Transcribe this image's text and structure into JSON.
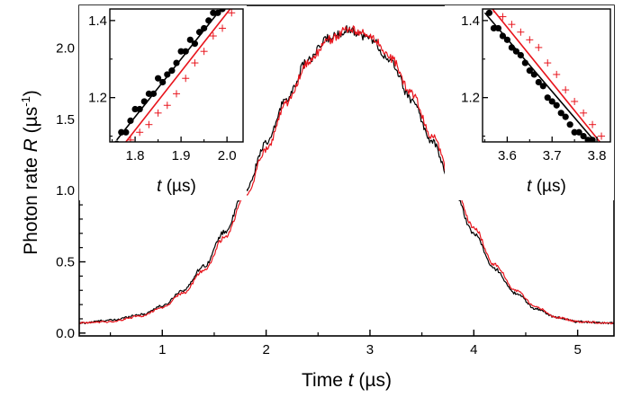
{
  "chart_data": [
    {
      "type": "line",
      "role": "main",
      "xlabel_prefix": "Time ",
      "xlabel_var": "t",
      "xlabel_unit": " (µs)",
      "ylabel_prefix": "Photon rate ",
      "ylabel_var": "R",
      "ylabel_unit": " (µs",
      "ylabel_unit_sup": "-1",
      "ylabel_close": ")",
      "xlim": [
        0.2,
        5.35
      ],
      "ylim": [
        -0.02,
        2.3
      ],
      "x_ticks": [
        1,
        2,
        3,
        4,
        5
      ],
      "x_tick_labels": [
        "1",
        "2",
        "3",
        "4",
        "5"
      ],
      "y_ticks": [
        0.0,
        0.5,
        1.0,
        1.5,
        2.0
      ],
      "y_tick_labels": [
        "0.0",
        "0.5",
        "1.0",
        "1.5",
        "2.0"
      ],
      "series": [
        {
          "name": "black trace",
          "color": "#000000",
          "x": [
            0.2,
            0.5,
            0.8,
            1.0,
            1.2,
            1.4,
            1.6,
            1.8,
            2.0,
            2.2,
            2.4,
            2.6,
            2.8,
            3.0,
            3.2,
            3.4,
            3.6,
            3.8,
            4.0,
            4.2,
            4.4,
            4.6,
            4.8,
            5.0,
            5.35
          ],
          "y": [
            0.07,
            0.09,
            0.13,
            0.19,
            0.3,
            0.47,
            0.71,
            1.0,
            1.33,
            1.65,
            1.91,
            2.07,
            2.13,
            2.07,
            1.9,
            1.64,
            1.34,
            1.01,
            0.7,
            0.45,
            0.28,
            0.17,
            0.11,
            0.08,
            0.07
          ]
        },
        {
          "name": "red trace",
          "color": "#e8141c",
          "x": [
            0.2,
            0.5,
            0.8,
            1.0,
            1.2,
            1.4,
            1.6,
            1.8,
            2.0,
            2.2,
            2.4,
            2.6,
            2.8,
            3.0,
            3.2,
            3.4,
            3.6,
            3.8,
            4.0,
            4.2,
            4.4,
            4.6,
            4.8,
            5.0,
            5.35
          ],
          "y": [
            0.07,
            0.08,
            0.12,
            0.18,
            0.28,
            0.44,
            0.67,
            0.96,
            1.29,
            1.62,
            1.89,
            2.06,
            2.13,
            2.09,
            1.93,
            1.68,
            1.38,
            1.05,
            0.74,
            0.48,
            0.3,
            0.18,
            0.11,
            0.08,
            0.07
          ]
        }
      ]
    },
    {
      "type": "scatter",
      "role": "inset-left",
      "xlabel_var": "t",
      "xlabel_unit": " (µs)",
      "xlim": [
        1.745,
        2.035
      ],
      "ylim": [
        1.085,
        1.43
      ],
      "x_ticks": [
        1.8,
        1.9,
        2.0
      ],
      "x_tick_labels": [
        "1.8",
        "1.9",
        "2.0"
      ],
      "y_ticks": [
        1.2,
        1.4
      ],
      "y_tick_labels": [
        "1.2",
        "1.4"
      ],
      "points_black": [
        [
          1.76,
          1.08
        ],
        [
          1.77,
          1.11
        ],
        [
          1.78,
          1.11
        ],
        [
          1.79,
          1.14
        ],
        [
          1.8,
          1.17
        ],
        [
          1.81,
          1.17
        ],
        [
          1.82,
          1.19
        ],
        [
          1.83,
          1.21
        ],
        [
          1.84,
          1.21
        ],
        [
          1.85,
          1.25
        ],
        [
          1.86,
          1.24
        ],
        [
          1.87,
          1.26
        ],
        [
          1.88,
          1.27
        ],
        [
          1.89,
          1.29
        ],
        [
          1.9,
          1.32
        ],
        [
          1.91,
          1.32
        ],
        [
          1.92,
          1.35
        ],
        [
          1.93,
          1.34
        ],
        [
          1.94,
          1.37
        ],
        [
          1.95,
          1.38
        ],
        [
          1.96,
          1.4
        ],
        [
          1.97,
          1.42
        ],
        [
          1.98,
          1.42
        ],
        [
          1.99,
          1.43
        ]
      ],
      "points_red": [
        [
          1.77,
          1.07
        ],
        [
          1.79,
          1.09
        ],
        [
          1.81,
          1.11
        ],
        [
          1.83,
          1.13
        ],
        [
          1.85,
          1.16
        ],
        [
          1.87,
          1.18
        ],
        [
          1.89,
          1.21
        ],
        [
          1.91,
          1.25
        ],
        [
          1.93,
          1.29
        ],
        [
          1.95,
          1.32
        ],
        [
          1.97,
          1.36
        ],
        [
          1.99,
          1.38
        ],
        [
          2.01,
          1.42
        ]
      ],
      "fit_black": [
        [
          1.76,
          1.09
        ],
        [
          2.0,
          1.45
        ]
      ],
      "fit_red": [
        [
          1.77,
          1.07
        ],
        [
          2.02,
          1.45
        ]
      ]
    },
    {
      "type": "scatter",
      "role": "inset-right",
      "xlabel_var": "t",
      "xlabel_unit": " (µs)",
      "xlim": [
        3.545,
        3.83
      ],
      "ylim": [
        1.085,
        1.43
      ],
      "x_ticks": [
        3.6,
        3.7,
        3.8
      ],
      "x_tick_labels": [
        "3.6",
        "3.7",
        "3.8"
      ],
      "y_ticks": [
        1.2,
        1.4
      ],
      "y_tick_labels": [
        "1.2",
        "1.4"
      ],
      "points_black": [
        [
          3.56,
          1.42
        ],
        [
          3.57,
          1.38
        ],
        [
          3.58,
          1.38
        ],
        [
          3.59,
          1.36
        ],
        [
          3.6,
          1.35
        ],
        [
          3.61,
          1.33
        ],
        [
          3.62,
          1.32
        ],
        [
          3.63,
          1.31
        ],
        [
          3.64,
          1.29
        ],
        [
          3.65,
          1.27
        ],
        [
          3.66,
          1.26
        ],
        [
          3.67,
          1.24
        ],
        [
          3.68,
          1.23
        ],
        [
          3.69,
          1.2
        ],
        [
          3.7,
          1.19
        ],
        [
          3.71,
          1.18
        ],
        [
          3.72,
          1.16
        ],
        [
          3.73,
          1.15
        ],
        [
          3.74,
          1.13
        ],
        [
          3.75,
          1.11
        ],
        [
          3.76,
          1.11
        ],
        [
          3.77,
          1.1
        ],
        [
          3.78,
          1.09
        ],
        [
          3.79,
          1.09
        ]
      ],
      "points_red": [
        [
          3.57,
          1.43
        ],
        [
          3.59,
          1.41
        ],
        [
          3.61,
          1.39
        ],
        [
          3.63,
          1.37
        ],
        [
          3.65,
          1.35
        ],
        [
          3.67,
          1.33
        ],
        [
          3.69,
          1.29
        ],
        [
          3.71,
          1.26
        ],
        [
          3.73,
          1.22
        ],
        [
          3.75,
          1.19
        ],
        [
          3.77,
          1.16
        ],
        [
          3.79,
          1.13
        ],
        [
          3.81,
          1.1
        ]
      ],
      "fit_black": [
        [
          3.55,
          1.42
        ],
        [
          3.8,
          1.08
        ]
      ],
      "fit_red": [
        [
          3.56,
          1.44
        ],
        [
          3.81,
          1.08
        ]
      ]
    }
  ]
}
